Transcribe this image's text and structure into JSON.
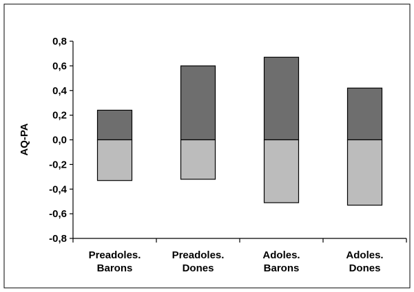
{
  "chart_data": {
    "type": "bar",
    "stacked": true,
    "title": "",
    "xlabel": "",
    "ylabel": "AQ-PA",
    "ylim": [
      -0.8,
      0.8
    ],
    "yticks": [
      "-0,8",
      "-0,6",
      "-0,4",
      "-0,2",
      "0,0",
      "0,2",
      "0,4",
      "0,6",
      "0,8"
    ],
    "categories": [
      [
        "Preadoles.",
        "Barons"
      ],
      [
        "Preadoles.",
        "Dones"
      ],
      [
        "Adoles.",
        "Barons"
      ],
      [
        "Adoles.",
        "Dones"
      ]
    ],
    "series": [
      {
        "values": [
          0.24,
          0.6,
          0.67,
          0.42
        ],
        "color": "#6e6e6e"
      },
      {
        "values": [
          -0.33,
          -0.32,
          -0.51,
          -0.53
        ],
        "color": "#bcbcbc"
      }
    ],
    "grid": false,
    "legend": "none"
  }
}
